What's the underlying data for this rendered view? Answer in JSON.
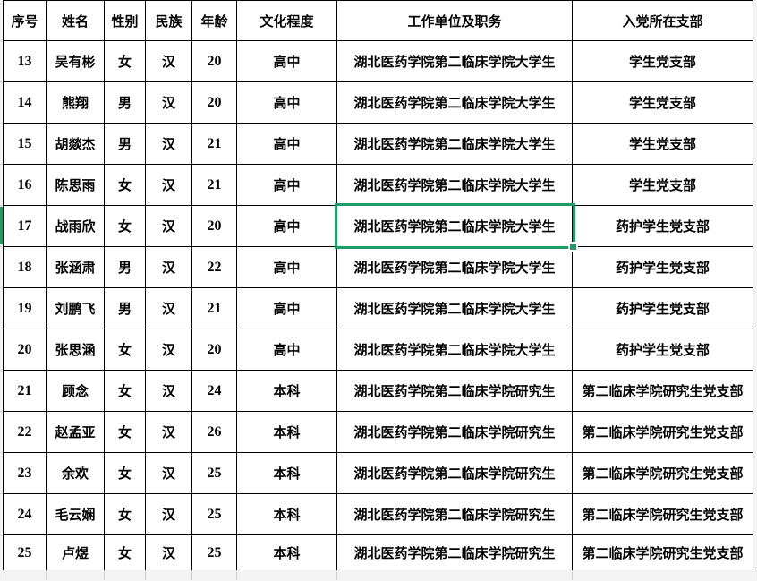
{
  "colors": {
    "selection_green": "#1F9B66",
    "table_border": "#000000",
    "outside_background": "#F3F3F3",
    "outside_gridline": "#CFCFCF"
  },
  "header": {
    "no": "序号",
    "name": "姓名",
    "gender": "性别",
    "ethnicity": "民族",
    "age": "年龄",
    "education": "文化程度",
    "work_unit": "工作单位及职务",
    "party_branch": "入党所在支部"
  },
  "rows": [
    {
      "no": "13",
      "name": "吴有彬",
      "gender": "女",
      "ethnicity": "汉",
      "age": "20",
      "education": "高中",
      "work_unit": "湖北医药学院第二临床学院大学生",
      "party_branch": "学生党支部"
    },
    {
      "no": "14",
      "name": "熊翔",
      "gender": "男",
      "ethnicity": "汉",
      "age": "20",
      "education": "高中",
      "work_unit": "湖北医药学院第二临床学院大学生",
      "party_branch": "学生党支部"
    },
    {
      "no": "15",
      "name": "胡燚杰",
      "gender": "男",
      "ethnicity": "汉",
      "age": "21",
      "education": "高中",
      "work_unit": "湖北医药学院第二临床学院大学生",
      "party_branch": "学生党支部"
    },
    {
      "no": "16",
      "name": "陈思雨",
      "gender": "女",
      "ethnicity": "汉",
      "age": "21",
      "education": "高中",
      "work_unit": "湖北医药学院第二临床学院大学生",
      "party_branch": "学生党支部"
    },
    {
      "no": "17",
      "name": "战雨欣",
      "gender": "女",
      "ethnicity": "汉",
      "age": "20",
      "education": "高中",
      "work_unit": "湖北医药学院第二临床学院大学生",
      "party_branch": "药护学生党支部"
    },
    {
      "no": "18",
      "name": "张涵肃",
      "gender": "男",
      "ethnicity": "汉",
      "age": "22",
      "education": "高中",
      "work_unit": "湖北医药学院第二临床学院大学生",
      "party_branch": "药护学生党支部"
    },
    {
      "no": "19",
      "name": "刘鹏飞",
      "gender": "男",
      "ethnicity": "汉",
      "age": "21",
      "education": "高中",
      "work_unit": "湖北医药学院第二临床学院大学生",
      "party_branch": "药护学生党支部"
    },
    {
      "no": "20",
      "name": "张思涵",
      "gender": "女",
      "ethnicity": "汉",
      "age": "20",
      "education": "高中",
      "work_unit": "湖北医药学院第二临床学院大学生",
      "party_branch": "药护学生党支部"
    },
    {
      "no": "21",
      "name": "顾念",
      "gender": "女",
      "ethnicity": "汉",
      "age": "24",
      "education": "本科",
      "work_unit": "湖北医药学院第二临床学院研究生",
      "party_branch": "第二临床学院研究生党支部"
    },
    {
      "no": "22",
      "name": "赵孟亚",
      "gender": "女",
      "ethnicity": "汉",
      "age": "26",
      "education": "本科",
      "work_unit": "湖北医药学院第二临床学院研究生",
      "party_branch": "第二临床学院研究生党支部"
    },
    {
      "no": "23",
      "name": "余欢",
      "gender": "女",
      "ethnicity": "汉",
      "age": "25",
      "education": "本科",
      "work_unit": "湖北医药学院第二临床学院研究生",
      "party_branch": "第二临床学院研究生党支部"
    },
    {
      "no": "24",
      "name": "毛云娴",
      "gender": "女",
      "ethnicity": "汉",
      "age": "25",
      "education": "本科",
      "work_unit": "湖北医药学院第二临床学院研究生",
      "party_branch": "第二临床学院研究生党支部"
    },
    {
      "no": "25",
      "name": "卢煜",
      "gender": "女",
      "ethnicity": "汉",
      "age": "25",
      "education": "本科",
      "work_unit": "湖北医药学院第二临床学院研究生",
      "party_branch": "第二临床学院研究生党支部"
    }
  ],
  "selection": {
    "row_no": "17",
    "column": "work_unit"
  }
}
